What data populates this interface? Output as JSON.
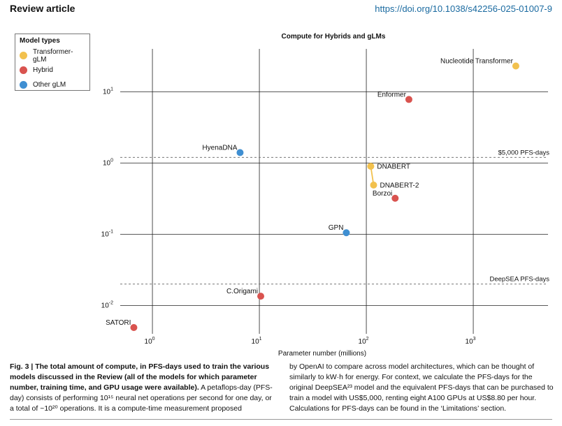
{
  "header": {
    "journal": "Review article",
    "doi": "https://doi.org/10.1038/s42256-025-01007-9"
  },
  "legend": {
    "title": "Model types",
    "items": [
      {
        "label": "Transformer-gLM",
        "color": "#f2c14e"
      },
      {
        "label": "Hybrid",
        "color": "#d9534f"
      },
      {
        "label": "Other gLM",
        "color": "#3f8fd2"
      }
    ]
  },
  "chart_data": {
    "type": "scatter",
    "title": "Compute for Hybrids and gLMs",
    "xlabel": "Parameter number (millions)",
    "ylabel": "",
    "x_scale": "log",
    "y_scale": "log",
    "xlim": [
      0.5,
      5000
    ],
    "ylim": [
      0.004,
      40
    ],
    "x_ticks": [
      {
        "value": 1,
        "base": "10",
        "exp": "0"
      },
      {
        "value": 10,
        "base": "10",
        "exp": "1"
      },
      {
        "value": 100,
        "base": "10",
        "exp": "2"
      },
      {
        "value": 1000,
        "base": "10",
        "exp": "3"
      }
    ],
    "y_ticks": [
      {
        "value": 0.01,
        "base": "10",
        "exp": "-2"
      },
      {
        "value": 0.1,
        "base": "10",
        "exp": "-1"
      },
      {
        "value": 1,
        "base": "10",
        "exp": "0"
      },
      {
        "value": 10,
        "base": "10",
        "exp": "1"
      }
    ],
    "grid": true,
    "colors": {
      "Transformer-gLM": "#f2c14e",
      "Hybrid": "#d9534f",
      "Other gLM": "#3f8fd2"
    },
    "points": [
      {
        "label": "Nucleotide Transformer",
        "x": 2500,
        "y": 23,
        "type": "Transformer-gLM",
        "label_side": "left"
      },
      {
        "label": "Enformer",
        "x": 250,
        "y": 7.8,
        "type": "Hybrid",
        "label_side": "left"
      },
      {
        "label": "HyenaDNA",
        "x": 6.6,
        "y": 1.4,
        "type": "Other gLM",
        "label_side": "left"
      },
      {
        "label": "DNABERT",
        "x": 110,
        "y": 0.9,
        "type": "Transformer-gLM",
        "label_side": "right"
      },
      {
        "label": "DNABERT-2",
        "x": 117,
        "y": 0.49,
        "type": "Transformer-gLM",
        "label_side": "right"
      },
      {
        "label": "Borzoi",
        "x": 186,
        "y": 0.32,
        "type": "Hybrid",
        "label_side": "left"
      },
      {
        "label": "GPN",
        "x": 65,
        "y": 0.105,
        "type": "Other gLM",
        "label_side": "left"
      },
      {
        "label": "C.Origami",
        "x": 10.3,
        "y": 0.0135,
        "type": "Hybrid",
        "label_side": "left"
      },
      {
        "label": "SATORI",
        "x": 0.67,
        "y": 0.0049,
        "type": "Hybrid",
        "label_side": "left"
      }
    ],
    "connections": [
      [
        "DNABERT",
        "DNABERT-2"
      ]
    ],
    "reference_lines": [
      {
        "label": "$5,000 PFS-days",
        "y": 1.2
      },
      {
        "label": "DeepSEA PFS-days",
        "y": 0.02
      }
    ]
  },
  "caption": {
    "fig_label": "Fig. 3 | The total amount of compute, in PFS-days used to train the various models discussed in the Review (all of the models for which parameter number, training time, and GPU usage were available).",
    "left_text": "A petaflops-day (PFS-day) consists of performing 10¹⁵ neural net operations per second for one day, or a total of ~10²⁰ operations. It is a compute-time measurement proposed",
    "right_text": "by OpenAI to compare across model architectures, which can be thought of similarly to kW·h for energy. For context, we calculate the PFS-days for the original DeepSEA²³ model and the equivalent PFS-days that can be purchased to train a model with US$5,000, renting eight A100 GPUs at US$8.80 per hour. Calculations for PFS-days can be found in the ‘Limitations’ section."
  }
}
